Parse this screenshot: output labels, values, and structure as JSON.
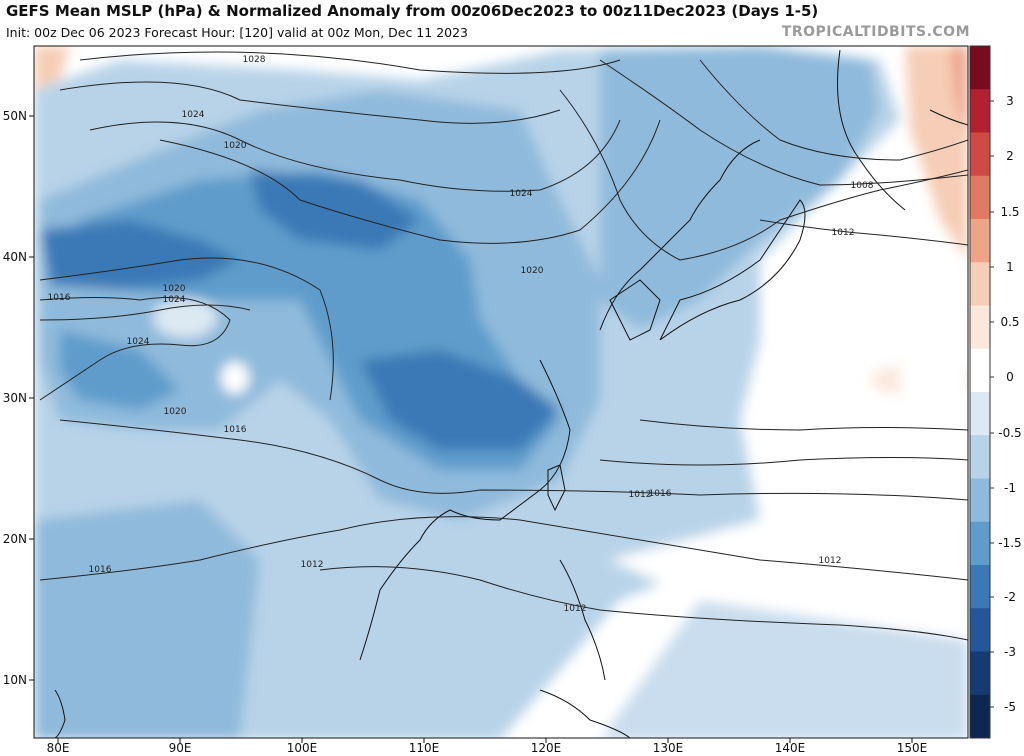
{
  "header": {
    "title": "GEFS Mean MSLP (hPa) & Normalized Anomaly from 00z06Dec2023 to 00z11Dec2023 (Days 1-5)",
    "subtitle": "Init: 00z Dec 06 2023   Forecast Hour: [120]   valid at 00z Mon, Dec 11 2023",
    "brand": "TROPICALTIDBITS.COM"
  },
  "map": {
    "lat_labels": [
      "50N",
      "40N",
      "30N",
      "20N",
      "10N"
    ],
    "lon_labels": [
      "80E",
      "90E",
      "100E",
      "110E",
      "120E",
      "130E",
      "140E",
      "150E"
    ],
    "isobar_labels": [
      "1028",
      "1024",
      "1020",
      "1024",
      "1020",
      "1024",
      "1016",
      "1020",
      "1024",
      "1020",
      "1016",
      "1016",
      "1008",
      "1012",
      "1016",
      "1012",
      "1012",
      "1012",
      "1012"
    ]
  },
  "colorbar": {
    "ticks": [
      "3",
      "2",
      "1.5",
      "1",
      "0.5",
      "0",
      "-0.5",
      "-1",
      "-1.5",
      "-2",
      "-3",
      "-5"
    ],
    "colors": [
      "#7a0a1e",
      "#b32030",
      "#cf4a45",
      "#e07a63",
      "#eda58a",
      "#f6cdb6",
      "#fbe8dc",
      "#ffffff",
      "#dce9f3",
      "#b8d3e8",
      "#8fbadb",
      "#5f9ccb",
      "#3a79b6",
      "#23579a",
      "#163b73",
      "#0d2750"
    ]
  }
}
